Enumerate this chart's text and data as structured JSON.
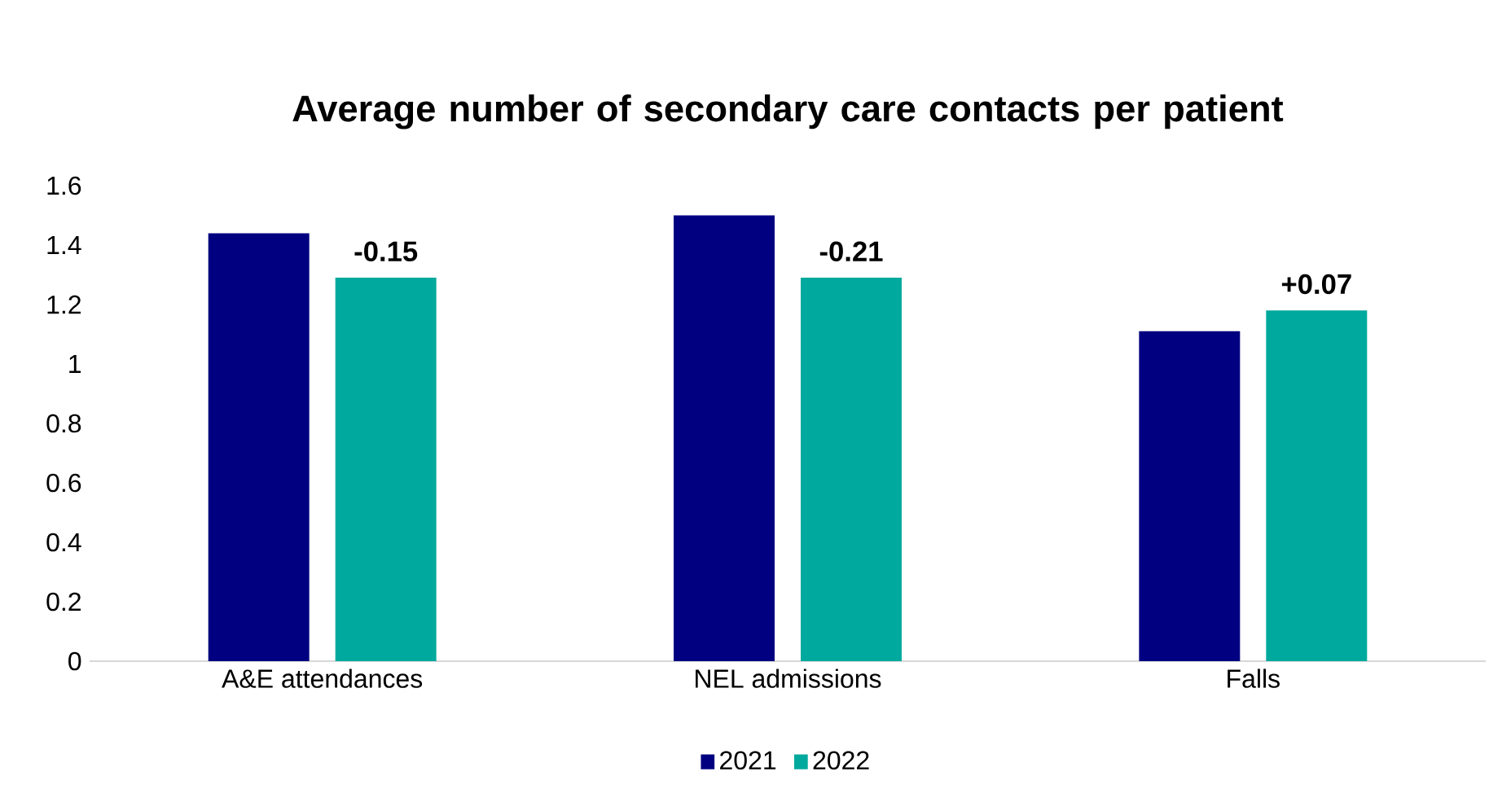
{
  "chart_data": {
    "type": "bar",
    "title": "Average number of secondary care contacts per patient",
    "categories": [
      "A&E attendances",
      "NEL admissions",
      "Falls"
    ],
    "series": [
      {
        "name": "2021",
        "color": "#000080",
        "values": [
          1.44,
          1.5,
          1.11
        ]
      },
      {
        "name": "2022",
        "color": "#00a99d",
        "values": [
          1.29,
          1.29,
          1.18
        ]
      }
    ],
    "ylim": [
      0,
      1.6
    ],
    "yticks": [
      0,
      0.2,
      0.4,
      0.6,
      0.8,
      1,
      1.2,
      1.4,
      1.6
    ],
    "annotations": [
      "-0.15",
      "-0.21",
      "+0.07"
    ],
    "grid": false,
    "legend": "bottom"
  }
}
